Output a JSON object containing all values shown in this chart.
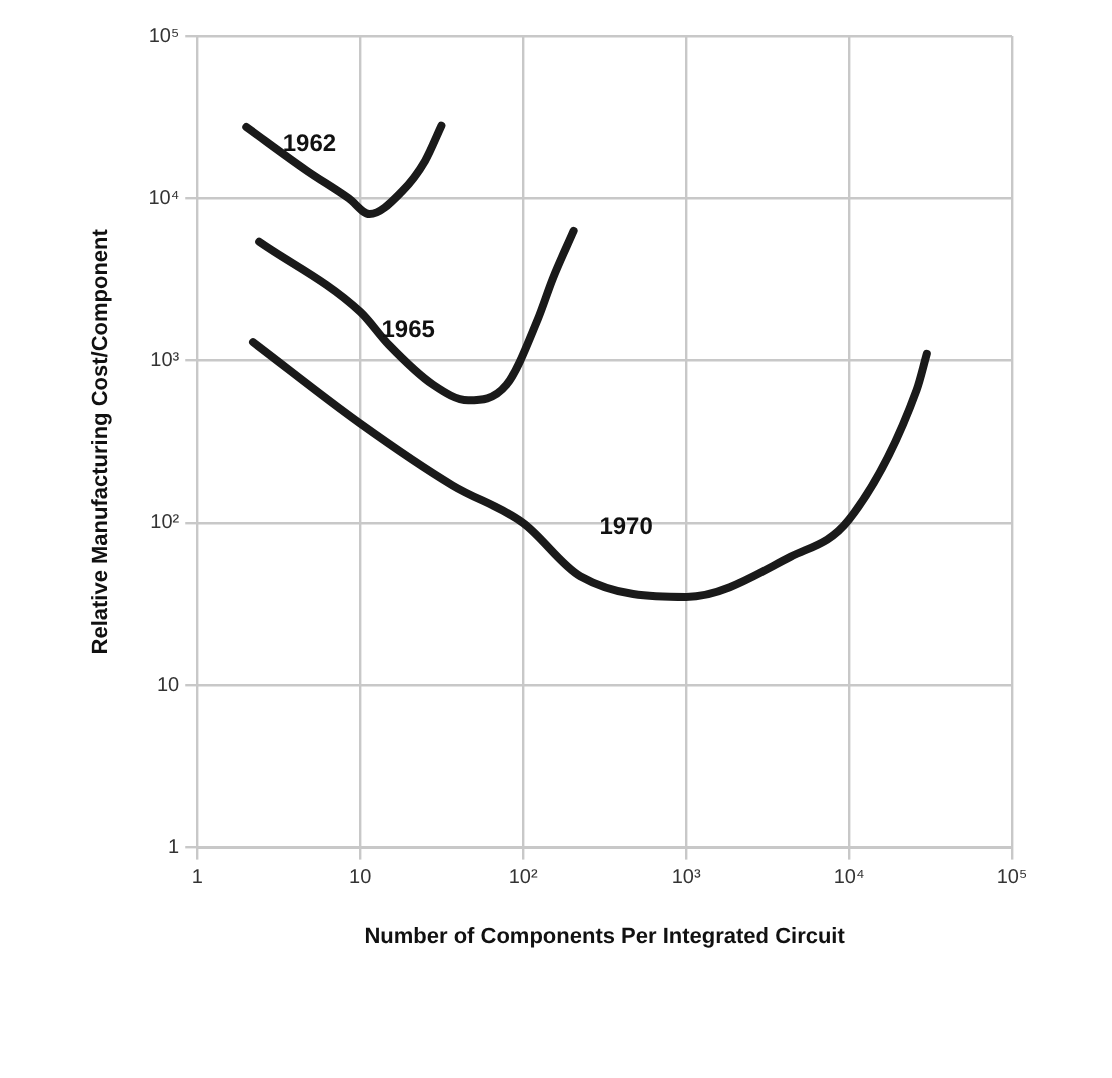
{
  "chart_data": {
    "type": "line",
    "xlabel": "Number of Components Per Integrated Circuit",
    "ylabel": "Relative Manufacturing Cost/Component",
    "log": "xy",
    "grid": true,
    "legend": false,
    "marker": "none",
    "line_style": "solid",
    "xlim": [
      1,
      100000
    ],
    "ylim": [
      1,
      100000
    ],
    "xticks": [
      1,
      10,
      {
        "value": 100,
        "label": "10²"
      },
      {
        "value": 1000,
        "label": "10³"
      },
      {
        "value": 10000,
        "label": "10⁴"
      },
      {
        "value": 100000,
        "label": "10⁵"
      }
    ],
    "yticks": [
      1,
      10,
      {
        "value": 100,
        "label": "10²"
      },
      {
        "value": 1000,
        "label": "10³"
      },
      {
        "value": 10000,
        "label": "10⁴"
      },
      {
        "value": 100000,
        "label": "10⁵"
      }
    ],
    "series": [
      {
        "name": "1962",
        "color": "#1a1a1a",
        "x": [
          2,
          4.7,
          8.5,
          11.4,
          18,
          25,
          31.5
        ],
        "values": [
          27500,
          14800,
          10000,
          8000,
          11000,
          17000,
          28000
        ]
      },
      {
        "name": "1965",
        "color": "#1a1a1a",
        "x": [
          2.4,
          10,
          15,
          28,
          46,
          79,
          123,
          152,
          204
        ],
        "values": [
          5400,
          2000,
          1250,
          710,
          570,
          710,
          1800,
          3200,
          6300
        ]
      },
      {
        "name": "1970",
        "color": "#1a1a1a",
        "x": [
          2.2,
          10,
          37,
          100,
          224,
          1000,
          4400,
          10000,
          26000,
          30000
        ],
        "values": [
          1300,
          410,
          170,
          100,
          47,
          35,
          62,
          105,
          660,
          1100
        ]
      }
    ]
  }
}
